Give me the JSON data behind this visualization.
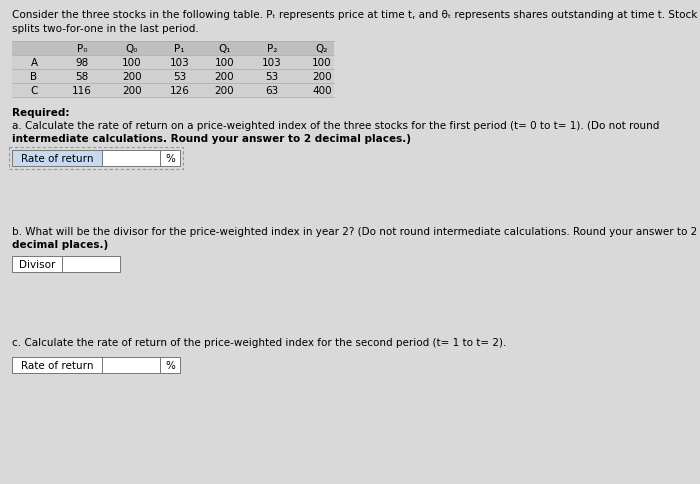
{
  "title_line1": "Consider the three stocks in the following table. Pₜ represents price at time t, and θₜ represents shares outstanding at time t. Stock C",
  "title_line2": "splits two-for-one in the last period.",
  "table_headers": [
    "",
    "P₀",
    "Q₀",
    "P₁",
    "Q₁",
    "P₂",
    "Q₂"
  ],
  "table_rows": [
    [
      "A",
      "98",
      "100",
      "103",
      "100",
      "103",
      "100"
    ],
    [
      "B",
      "58",
      "200",
      "53",
      "200",
      "53",
      "200"
    ],
    [
      "C",
      "116",
      "200",
      "126",
      "200",
      "63",
      "400"
    ]
  ],
  "required_label": "Required:",
  "part_a_text1": "a. Calculate the rate of return on a price-weighted index of the three stocks for the first period (t= 0 to t= 1). (Do not round",
  "part_a_text2": "intermediate calculations. Round your answer to 2 decimal places.)",
  "part_a_label": "Rate of return",
  "part_a_unit": "%",
  "part_b_text1": "b. What will be the divisor for the price-weighted index in year 2? (Do not round intermediate calculations. Round your answer to 2",
  "part_b_text2": "decimal places.)",
  "part_b_label": "Divisor",
  "part_c_text": "c. Calculate the rate of return of the price-weighted index for the second period (t= 1 to t= 2).",
  "part_c_label": "Rate of return",
  "part_c_unit": "%",
  "bg_color": "#d9d9d9",
  "table_header_bg": "#bfbfbf",
  "table_row_bg": "#d0d0d0",
  "input_box_white": "#ffffff",
  "input_label_bg": "#c5d9f0",
  "text_color": "#000000",
  "bold_color": "#1a1a1a",
  "font_size": 7.5,
  "font_size_bold": 7.5
}
